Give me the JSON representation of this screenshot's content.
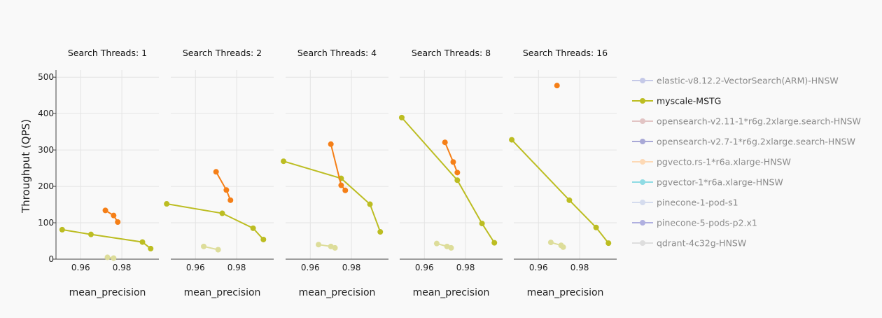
{
  "chart_data": {
    "type": "scatter",
    "y_axis_label": "Throughput (QPS)",
    "x_axis_label": "mean_precision",
    "xlim": [
      0.948,
      0.998
    ],
    "ylim": [
      0,
      510
    ],
    "x_ticks": [
      0.96,
      0.98
    ],
    "x_tick_labels": [
      "0.96",
      "0.98"
    ],
    "y_ticks": [
      0,
      100,
      200,
      300,
      400,
      500
    ],
    "y_tick_labels": [
      "0",
      "100",
      "200",
      "300",
      "400",
      "500"
    ],
    "grid": true,
    "legend_position": "right",
    "legend": [
      {
        "name": "elastic-v8.12.2-VectorSearch(ARM)-HNSW",
        "color": "#c5c9e8",
        "active": false
      },
      {
        "name": "myscale-MSTG",
        "color": "#bcbd22",
        "active": true
      },
      {
        "name": "opensearch-v2.11-1*r6g.2xlarge.search-HNSW",
        "color": "#e2c4c4",
        "active": false
      },
      {
        "name": "opensearch-v2.7-1*r6g.2xlarge.search-HNSW",
        "color": "#a8a8d6",
        "active": false
      },
      {
        "name": "pgvecto.rs-1*r6a.xlarge-HNSW",
        "color": "#fdd9b5",
        "active": false
      },
      {
        "name": "pgvector-1*r6a.xlarge-HNSW",
        "color": "#8fdbe4",
        "active": false
      },
      {
        "name": "pinecone-1-pod-s1",
        "color": "#d5dcee",
        "active": false
      },
      {
        "name": "pinecone-5-pods-p2.x1",
        "color": "#b0b0e0",
        "active": false
      },
      {
        "name": "qdrant-4c32g-HNSW",
        "color": "#dedede",
        "active": false
      }
    ],
    "panels": [
      {
        "title": "Search Threads: 1",
        "series": [
          {
            "color": "#bcbd22",
            "x": [
              0.951,
              0.965,
              0.99,
              0.994
            ],
            "y": [
              81,
              68,
              47,
              29
            ]
          },
          {
            "color": "#f57f17",
            "x": [
              0.972,
              0.976,
              0.978
            ],
            "y": [
              134,
              120,
              102
            ]
          },
          {
            "color": "#dddd9a",
            "x": [
              0.973,
              0.976
            ],
            "y": [
              5,
              3
            ]
          }
        ]
      },
      {
        "title": "Search Threads: 2",
        "series": [
          {
            "color": "#bcbd22",
            "x": [
              0.946,
              0.973,
              0.988,
              0.993
            ],
            "y": [
              152,
              126,
              85,
              54
            ]
          },
          {
            "color": "#f57f17",
            "x": [
              0.97,
              0.975,
              0.977
            ],
            "y": [
              240,
              190,
              162
            ]
          },
          {
            "color": "#dddd9a",
            "x": [
              0.964,
              0.971
            ],
            "y": [
              35,
              26
            ]
          }
        ]
      },
      {
        "title": "Search Threads: 4",
        "series": [
          {
            "color": "#bcbd22",
            "x": [
              0.947,
              0.975,
              0.989,
              0.994
            ],
            "y": [
              269,
              222,
              151,
              75
            ]
          },
          {
            "color": "#f57f17",
            "x": [
              0.97,
              0.975,
              0.977
            ],
            "y": [
              316,
              203,
              189
            ]
          },
          {
            "color": "#dddd9a",
            "x": [
              0.964,
              0.97,
              0.972
            ],
            "y": [
              40,
              35,
              31
            ]
          }
        ]
      },
      {
        "title": "Search Threads: 8",
        "series": [
          {
            "color": "#bcbd22",
            "x": [
              0.949,
              0.976,
              0.988,
              0.994
            ],
            "y": [
              389,
              217,
              98,
              45
            ]
          },
          {
            "color": "#f57f17",
            "x": [
              0.97,
              0.974,
              0.976
            ],
            "y": [
              321,
              267,
              238
            ]
          },
          {
            "color": "#dddd9a",
            "x": [
              0.966,
              0.971,
              0.973
            ],
            "y": [
              43,
              35,
              31
            ]
          }
        ]
      },
      {
        "title": "Search Threads: 16",
        "series": [
          {
            "color": "#bcbd22",
            "x": [
              0.947,
              0.975,
              0.988,
              0.994
            ],
            "y": [
              328,
              162,
              87,
              44
            ]
          },
          {
            "color": "#f57f17",
            "x": [
              0.969
            ],
            "y": [
              477
            ]
          },
          {
            "color": "#dddd9a",
            "x": [
              0.966,
              0.971,
              0.972
            ],
            "y": [
              46,
              38,
              33
            ]
          }
        ]
      }
    ]
  }
}
